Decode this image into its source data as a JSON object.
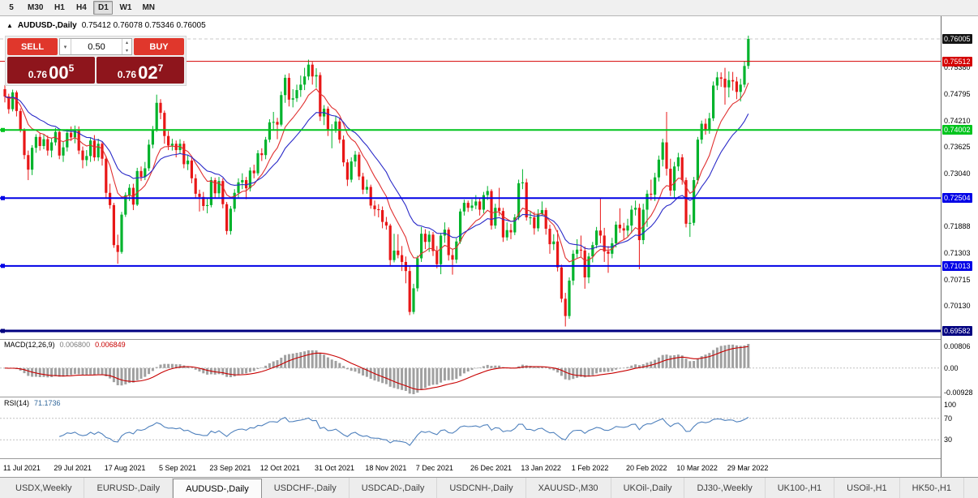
{
  "toolbar": {
    "timeframes": [
      "5",
      "M30",
      "H1",
      "H4",
      "D1",
      "W1",
      "MN"
    ],
    "active": "D1"
  },
  "window": {
    "title": "AUDUSD-,Daily",
    "ohlc_text": "0.75412 0.76078 0.75346 0.76005",
    "expander_icon": "▲"
  },
  "trade_panel": {
    "sell_label": "SELL",
    "buy_label": "BUY",
    "lot_value": "0.50",
    "sell_price": {
      "prefix": "0.76",
      "big": "00",
      "sup": "5"
    },
    "buy_price": {
      "prefix": "0.76",
      "big": "02",
      "sup": "7"
    },
    "colors": {
      "button": "#e0372c",
      "quote_bg": "#8e151c"
    }
  },
  "chart_data": {
    "type": "candlestick",
    "symbol": "AUDUSD-",
    "period": "Daily",
    "ylim": [
      0.69404,
      0.76505
    ],
    "current_bid": 0.76005,
    "bid_label": "0.76005",
    "colors": {
      "up": "#00b32c",
      "down": "#e81717",
      "background": "#ffffff"
    },
    "moving_averages": [
      {
        "type": "EMA",
        "period": 10,
        "color": "#e03030"
      },
      {
        "type": "EMA",
        "period": 21,
        "color": "#2a2ac8"
      }
    ],
    "hlines": [
      {
        "price": 0.75512,
        "label": "0.75512",
        "color": "#d40000",
        "width": 1,
        "marker": false
      },
      {
        "price": 0.74002,
        "label": "0.74002",
        "color": "#00c41d",
        "width": 2,
        "marker": true
      },
      {
        "price": 0.72504,
        "label": "0.72504",
        "color": "#0000e6",
        "width": 2,
        "marker": true
      },
      {
        "price": 0.71013,
        "label": "0.71013",
        "color": "#0000e6",
        "width": 2,
        "marker": true
      },
      {
        "price": 0.69582,
        "label": "0.69582",
        "color": "#000080",
        "width": 3,
        "marker": true
      }
    ],
    "y_axis_labels": [
      {
        "text": "0.75380",
        "price": 0.7538
      },
      {
        "text": "0.74795",
        "price": 0.74795
      },
      {
        "text": "0.74210",
        "price": 0.7421
      },
      {
        "text": "0.73625",
        "price": 0.73625
      },
      {
        "text": "0.73040",
        "price": 0.7304
      },
      {
        "text": "0.71888",
        "price": 0.71888
      },
      {
        "text": "0.71303",
        "price": 0.71303
      },
      {
        "text": "0.70715",
        "price": 0.70715
      },
      {
        "text": "0.70130",
        "price": 0.7013
      }
    ],
    "x_axis_labels": [
      {
        "text": "11 Jul 2021",
        "index": 0
      },
      {
        "text": "29 Jul 2021",
        "index": 13
      },
      {
        "text": "17 Aug 2021",
        "index": 26
      },
      {
        "text": "5 Sep 2021",
        "index": 40
      },
      {
        "text": "23 Sep 2021",
        "index": 53
      },
      {
        "text": "12 Oct 2021",
        "index": 66
      },
      {
        "text": "31 Oct 2021",
        "index": 80
      },
      {
        "text": "18 Nov 2021",
        "index": 93
      },
      {
        "text": "7 Dec 2021",
        "index": 106
      },
      {
        "text": "26 Dec 2021",
        "index": 120
      },
      {
        "text": "13 Jan 2022",
        "index": 133
      },
      {
        "text": "1 Feb 2022",
        "index": 146
      },
      {
        "text": "20 Feb 2022",
        "index": 160
      },
      {
        "text": "10 Mar 2022",
        "index": 173
      },
      {
        "text": "29 Mar 2022",
        "index": 186
      }
    ],
    "indicators": {
      "macd": {
        "name": "MACD(12,26,9)",
        "value_main": "0.006800",
        "value_signal": "0.006849",
        "fast": 12,
        "slow": 26,
        "signal": 9,
        "axis_labels": [
          "0.00806",
          "0.00",
          "-0.00928"
        ],
        "histogram_color": "#a0a0a0",
        "signal_color": "#c80000"
      },
      "rsi": {
        "name": "RSI(14)",
        "value": "71.1736",
        "period": 14,
        "axis_labels": [
          "100",
          "70",
          "30"
        ],
        "levels": [
          70,
          30
        ],
        "line_color": "#4f81bd"
      }
    },
    "candles": [
      [
        0.749,
        0.7499,
        0.7461,
        0.7474
      ],
      [
        0.7474,
        0.748,
        0.7436,
        0.7446
      ],
      [
        0.7446,
        0.7489,
        0.7441,
        0.7483
      ],
      [
        0.7483,
        0.7487,
        0.743,
        0.7442
      ],
      [
        0.7442,
        0.7448,
        0.7395,
        0.7401
      ],
      [
        0.7401,
        0.7404,
        0.7336,
        0.7345
      ],
      [
        0.7345,
        0.7355,
        0.729,
        0.7313
      ],
      [
        0.7313,
        0.7367,
        0.7301,
        0.7361
      ],
      [
        0.7361,
        0.7391,
        0.735,
        0.7385
      ],
      [
        0.7385,
        0.7393,
        0.7355,
        0.7365
      ],
      [
        0.7365,
        0.739,
        0.7358,
        0.738
      ],
      [
        0.738,
        0.7388,
        0.7344,
        0.7355
      ],
      [
        0.7355,
        0.7382,
        0.734,
        0.7373
      ],
      [
        0.7373,
        0.7405,
        0.7366,
        0.7396
      ],
      [
        0.7396,
        0.7401,
        0.7336,
        0.7344
      ],
      [
        0.7344,
        0.7374,
        0.733,
        0.7362
      ],
      [
        0.7362,
        0.7402,
        0.7353,
        0.7394
      ],
      [
        0.7394,
        0.7408,
        0.7376,
        0.7384
      ],
      [
        0.7384,
        0.741,
        0.7371,
        0.7401
      ],
      [
        0.7401,
        0.7408,
        0.7347,
        0.7355
      ],
      [
        0.7355,
        0.7364,
        0.7316,
        0.7334
      ],
      [
        0.7334,
        0.7356,
        0.7321,
        0.7343
      ],
      [
        0.7343,
        0.7384,
        0.733,
        0.7377
      ],
      [
        0.7377,
        0.7389,
        0.7332,
        0.734
      ],
      [
        0.734,
        0.7381,
        0.7332,
        0.737
      ],
      [
        0.737,
        0.7374,
        0.7322,
        0.7337
      ],
      [
        0.7337,
        0.7343,
        0.725,
        0.7262
      ],
      [
        0.7262,
        0.7282,
        0.7227,
        0.7235
      ],
      [
        0.7235,
        0.724,
        0.7141,
        0.7147
      ],
      [
        0.7147,
        0.717,
        0.7106,
        0.7132
      ],
      [
        0.7132,
        0.722,
        0.7128,
        0.7214
      ],
      [
        0.7214,
        0.7263,
        0.7209,
        0.7257
      ],
      [
        0.7257,
        0.7281,
        0.7244,
        0.7273
      ],
      [
        0.7273,
        0.7282,
        0.7224,
        0.7236
      ],
      [
        0.7236,
        0.7317,
        0.7233,
        0.731
      ],
      [
        0.731,
        0.732,
        0.7288,
        0.7297
      ],
      [
        0.7297,
        0.733,
        0.729,
        0.7316
      ],
      [
        0.7316,
        0.7379,
        0.731,
        0.7368
      ],
      [
        0.7368,
        0.7409,
        0.736,
        0.74
      ],
      [
        0.74,
        0.7478,
        0.7396,
        0.746
      ],
      [
        0.746,
        0.7468,
        0.7424,
        0.7438
      ],
      [
        0.7438,
        0.7443,
        0.737,
        0.7387
      ],
      [
        0.7387,
        0.7398,
        0.7356,
        0.7366
      ],
      [
        0.7366,
        0.7381,
        0.7355,
        0.737
      ],
      [
        0.737,
        0.7377,
        0.734,
        0.7356
      ],
      [
        0.7356,
        0.738,
        0.7348,
        0.737
      ],
      [
        0.737,
        0.7376,
        0.7316,
        0.7325
      ],
      [
        0.7325,
        0.7346,
        0.7312,
        0.7333
      ],
      [
        0.7333,
        0.734,
        0.7283,
        0.7294
      ],
      [
        0.7294,
        0.7303,
        0.725,
        0.726
      ],
      [
        0.726,
        0.7269,
        0.7221,
        0.7253
      ],
      [
        0.7253,
        0.7264,
        0.7223,
        0.7233
      ],
      [
        0.7233,
        0.725,
        0.7217,
        0.7235
      ],
      [
        0.7235,
        0.7297,
        0.723,
        0.729
      ],
      [
        0.729,
        0.7295,
        0.7249,
        0.7261
      ],
      [
        0.7261,
        0.7297,
        0.7252,
        0.7288
      ],
      [
        0.7288,
        0.7294,
        0.7228,
        0.7237
      ],
      [
        0.7237,
        0.7242,
        0.717,
        0.7178
      ],
      [
        0.7178,
        0.7233,
        0.717,
        0.7227
      ],
      [
        0.7227,
        0.727,
        0.722,
        0.7262
      ],
      [
        0.7262,
        0.7294,
        0.725,
        0.7285
      ],
      [
        0.7285,
        0.7305,
        0.727,
        0.729
      ],
      [
        0.729,
        0.7297,
        0.7248,
        0.7272
      ],
      [
        0.7272,
        0.7318,
        0.7265,
        0.7311
      ],
      [
        0.7311,
        0.7324,
        0.7294,
        0.7305
      ],
      [
        0.7305,
        0.7356,
        0.73,
        0.7349
      ],
      [
        0.7349,
        0.736,
        0.7332,
        0.7345
      ],
      [
        0.7345,
        0.7385,
        0.7336,
        0.7379
      ],
      [
        0.7379,
        0.7424,
        0.7373,
        0.7417
      ],
      [
        0.7417,
        0.744,
        0.74,
        0.7418
      ],
      [
        0.7418,
        0.7427,
        0.738,
        0.7412
      ],
      [
        0.7412,
        0.7485,
        0.7408,
        0.7477
      ],
      [
        0.7477,
        0.7522,
        0.746,
        0.7515
      ],
      [
        0.7515,
        0.7525,
        0.7452,
        0.7467
      ],
      [
        0.7467,
        0.749,
        0.745,
        0.747
      ],
      [
        0.747,
        0.75,
        0.7462,
        0.7488
      ],
      [
        0.7488,
        0.752,
        0.7473,
        0.75
      ],
      [
        0.75,
        0.7537,
        0.7488,
        0.7518
      ],
      [
        0.7518,
        0.7555,
        0.751,
        0.7544
      ],
      [
        0.7544,
        0.755,
        0.75,
        0.7518
      ],
      [
        0.7518,
        0.7536,
        0.7493,
        0.7521
      ],
      [
        0.7521,
        0.7527,
        0.742,
        0.743
      ],
      [
        0.743,
        0.7455,
        0.7411,
        0.7447
      ],
      [
        0.7447,
        0.7452,
        0.7387,
        0.7399
      ],
      [
        0.7399,
        0.7413,
        0.736,
        0.7402
      ],
      [
        0.7402,
        0.7432,
        0.7394,
        0.7419
      ],
      [
        0.7419,
        0.7427,
        0.7371,
        0.7379
      ],
      [
        0.7379,
        0.7388,
        0.732,
        0.7329
      ],
      [
        0.7329,
        0.7336,
        0.7277,
        0.7291
      ],
      [
        0.7291,
        0.734,
        0.7285,
        0.7331
      ],
      [
        0.7331,
        0.7354,
        0.7319,
        0.7346
      ],
      [
        0.7346,
        0.7352,
        0.729,
        0.7298
      ],
      [
        0.7298,
        0.7306,
        0.7259,
        0.7269
      ],
      [
        0.7269,
        0.7291,
        0.726,
        0.7275
      ],
      [
        0.7275,
        0.728,
        0.7227,
        0.7234
      ],
      [
        0.7234,
        0.7245,
        0.7211,
        0.7226
      ],
      [
        0.7226,
        0.7237,
        0.7208,
        0.7224
      ],
      [
        0.7224,
        0.7232,
        0.7184,
        0.7198
      ],
      [
        0.7198,
        0.7209,
        0.7181,
        0.719
      ],
      [
        0.719,
        0.7194,
        0.71,
        0.7114
      ],
      [
        0.7114,
        0.7172,
        0.7109,
        0.7135
      ],
      [
        0.7135,
        0.7171,
        0.7118,
        0.7125
      ],
      [
        0.7125,
        0.7145,
        0.709,
        0.711
      ],
      [
        0.711,
        0.7122,
        0.7063,
        0.709
      ],
      [
        0.709,
        0.7101,
        0.6993,
        0.7
      ],
      [
        0.7,
        0.7062,
        0.6995,
        0.7052
      ],
      [
        0.7052,
        0.7124,
        0.7045,
        0.7118
      ],
      [
        0.7118,
        0.7187,
        0.711,
        0.7172
      ],
      [
        0.7172,
        0.7182,
        0.7138,
        0.7154
      ],
      [
        0.7154,
        0.7178,
        0.7132,
        0.717
      ],
      [
        0.717,
        0.7176,
        0.7123,
        0.7134
      ],
      [
        0.7134,
        0.7145,
        0.7096,
        0.7105
      ],
      [
        0.7105,
        0.7174,
        0.7083,
        0.7168
      ],
      [
        0.7168,
        0.7197,
        0.7152,
        0.7181
      ],
      [
        0.7181,
        0.7186,
        0.7113,
        0.7125
      ],
      [
        0.7125,
        0.7139,
        0.7082,
        0.7115
      ],
      [
        0.7115,
        0.7162,
        0.7107,
        0.7155
      ],
      [
        0.7155,
        0.7227,
        0.715,
        0.7221
      ],
      [
        0.7221,
        0.7247,
        0.7212,
        0.724
      ],
      [
        0.724,
        0.7245,
        0.722,
        0.7229
      ],
      [
        0.7229,
        0.7248,
        0.7222,
        0.7234
      ],
      [
        0.7234,
        0.7257,
        0.7226,
        0.7243
      ],
      [
        0.7243,
        0.725,
        0.7212,
        0.7225
      ],
      [
        0.7225,
        0.7264,
        0.7217,
        0.7257
      ],
      [
        0.7257,
        0.7277,
        0.7246,
        0.7266
      ],
      [
        0.7266,
        0.727,
        0.7181,
        0.719
      ],
      [
        0.719,
        0.7238,
        0.7183,
        0.7229
      ],
      [
        0.7229,
        0.7273,
        0.7211,
        0.7222
      ],
      [
        0.7222,
        0.7229,
        0.7154,
        0.7164
      ],
      [
        0.7164,
        0.7197,
        0.7157,
        0.718
      ],
      [
        0.718,
        0.7194,
        0.716,
        0.7175
      ],
      [
        0.7175,
        0.7215,
        0.7169,
        0.7208
      ],
      [
        0.7208,
        0.7291,
        0.7202,
        0.7283
      ],
      [
        0.7283,
        0.7314,
        0.727,
        0.7285
      ],
      [
        0.7285,
        0.7293,
        0.7201,
        0.7208
      ],
      [
        0.7208,
        0.722,
        0.7192,
        0.7208
      ],
      [
        0.7208,
        0.722,
        0.717,
        0.7184
      ],
      [
        0.7184,
        0.7226,
        0.7177,
        0.7216
      ],
      [
        0.7216,
        0.7243,
        0.7211,
        0.7224
      ],
      [
        0.7224,
        0.7229,
        0.717,
        0.7183
      ],
      [
        0.7183,
        0.7192,
        0.7128,
        0.7149
      ],
      [
        0.7149,
        0.7171,
        0.7136,
        0.7155
      ],
      [
        0.7155,
        0.718,
        0.7089,
        0.7098
      ],
      [
        0.7098,
        0.7104,
        0.7021,
        0.7029
      ],
      [
        0.7029,
        0.7042,
        0.6968,
        0.6991
      ],
      [
        0.6991,
        0.7076,
        0.6985,
        0.7069
      ],
      [
        0.7069,
        0.7136,
        0.7059,
        0.7128
      ],
      [
        0.7128,
        0.716,
        0.7119,
        0.7137
      ],
      [
        0.7137,
        0.7168,
        0.712,
        0.7135
      ],
      [
        0.7135,
        0.7144,
        0.7051,
        0.7076
      ],
      [
        0.7076,
        0.713,
        0.7063,
        0.7122
      ],
      [
        0.7122,
        0.7154,
        0.7109,
        0.7147
      ],
      [
        0.7147,
        0.7187,
        0.714,
        0.7179
      ],
      [
        0.7179,
        0.7249,
        0.7151,
        0.7168
      ],
      [
        0.7168,
        0.7185,
        0.711,
        0.7133
      ],
      [
        0.7133,
        0.7145,
        0.7086,
        0.7128
      ],
      [
        0.7128,
        0.7163,
        0.7118,
        0.7151
      ],
      [
        0.7151,
        0.7199,
        0.7142,
        0.7192
      ],
      [
        0.7192,
        0.7228,
        0.7174,
        0.7184
      ],
      [
        0.7184,
        0.7196,
        0.716,
        0.7179
      ],
      [
        0.7179,
        0.7205,
        0.7166,
        0.719
      ],
      [
        0.719,
        0.7234,
        0.7173,
        0.7225
      ],
      [
        0.7225,
        0.7245,
        0.7212,
        0.7229
      ],
      [
        0.7229,
        0.7238,
        0.7094,
        0.7158
      ],
      [
        0.7158,
        0.7238,
        0.7149,
        0.7225
      ],
      [
        0.7225,
        0.7268,
        0.7187,
        0.726
      ],
      [
        0.726,
        0.7291,
        0.7245,
        0.7258
      ],
      [
        0.7258,
        0.7306,
        0.7244,
        0.7296
      ],
      [
        0.7296,
        0.7344,
        0.7287,
        0.7335
      ],
      [
        0.7335,
        0.7381,
        0.732,
        0.7373
      ],
      [
        0.7373,
        0.744,
        0.73,
        0.7315
      ],
      [
        0.7315,
        0.7337,
        0.7255,
        0.7267
      ],
      [
        0.7267,
        0.733,
        0.725,
        0.732
      ],
      [
        0.732,
        0.735,
        0.731,
        0.734
      ],
      [
        0.734,
        0.7347,
        0.728,
        0.729
      ],
      [
        0.729,
        0.7296,
        0.7186,
        0.7194
      ],
      [
        0.7194,
        0.7214,
        0.7165,
        0.7196
      ],
      [
        0.7196,
        0.7297,
        0.719,
        0.729
      ],
      [
        0.729,
        0.7385,
        0.7282,
        0.7379
      ],
      [
        0.7379,
        0.7421,
        0.737,
        0.7414
      ],
      [
        0.7414,
        0.7425,
        0.739,
        0.7401
      ],
      [
        0.7401,
        0.7438,
        0.7392,
        0.7426
      ],
      [
        0.7426,
        0.7507,
        0.742,
        0.7498
      ],
      [
        0.7498,
        0.7528,
        0.7488,
        0.7516
      ],
      [
        0.7516,
        0.7527,
        0.7495,
        0.7513
      ],
      [
        0.7513,
        0.7537,
        0.7456,
        0.7494
      ],
      [
        0.7494,
        0.7529,
        0.7472,
        0.751
      ],
      [
        0.751,
        0.7528,
        0.7487,
        0.7507
      ],
      [
        0.7507,
        0.7517,
        0.7468,
        0.7484
      ],
      [
        0.7484,
        0.7513,
        0.7463,
        0.75
      ],
      [
        0.75,
        0.7552,
        0.7494,
        0.7541
      ],
      [
        0.75412,
        0.76078,
        0.75346,
        0.76005
      ]
    ]
  },
  "tabs": {
    "items": [
      "USDX,Weekly",
      "EURUSD-,Daily",
      "AUDUSD-,Daily",
      "USDCHF-,Daily",
      "USDCAD-,Daily",
      "USDCNH-,Daily",
      "XAUUSD-,M30",
      "UKOil-,Daily",
      "DJ30-,Weekly",
      "UK100-,H1",
      "USOil-,H1",
      "HK50-,H1"
    ],
    "active_index": 2
  }
}
